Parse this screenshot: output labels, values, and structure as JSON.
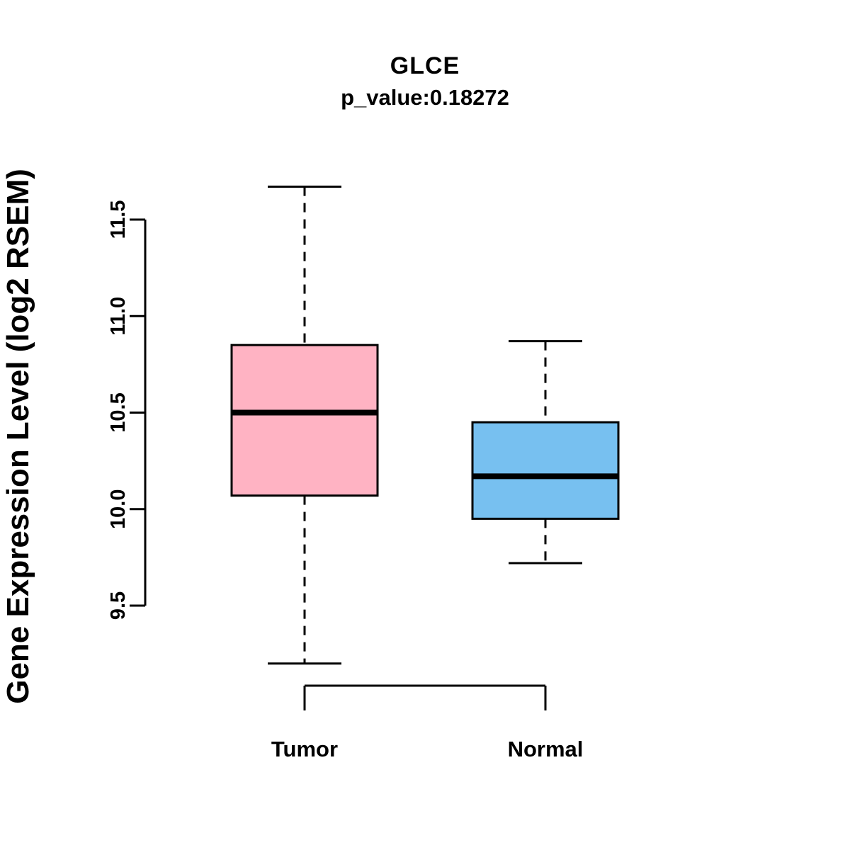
{
  "chart_data": {
    "type": "boxplot",
    "title": "GLCE",
    "subtitle": "p_value:0.18272",
    "ylabel": "Gene Expression Level (log2 RSEM)",
    "xlabel": "",
    "ylim": [
      9.1,
      11.75
    ],
    "yticks": [
      9.5,
      10.0,
      10.5,
      11.0,
      11.5
    ],
    "ytick_labels": [
      "9.5",
      "10.0",
      "10.5",
      "11.0",
      "11.5"
    ],
    "grid": "off",
    "legend": "none",
    "groups": [
      {
        "label": "Tumor",
        "color": "#FFB3C3",
        "whisker_low": 9.2,
        "q1": 10.07,
        "median": 10.5,
        "q3": 10.85,
        "whisker_high": 11.67
      },
      {
        "label": "Normal",
        "color": "#77C0F0",
        "whisker_low": 9.72,
        "q1": 9.95,
        "median": 10.17,
        "q3": 10.45,
        "whisker_high": 10.87
      }
    ]
  },
  "colors": {
    "stroke": "#000000",
    "background": "#FFFFFF"
  }
}
